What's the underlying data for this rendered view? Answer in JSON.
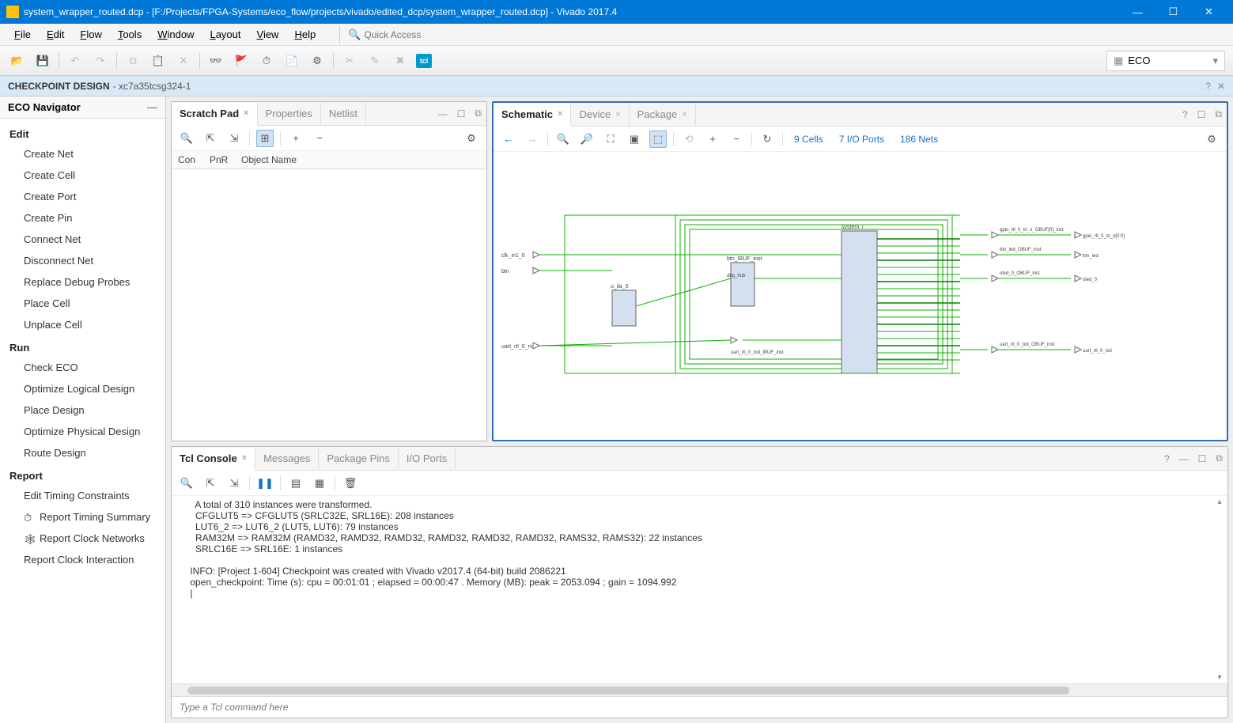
{
  "titlebar": {
    "text": "system_wrapper_routed.dcp - [F:/Projects/FPGA-Systems/eco_flow/projects/vivado/edited_dcp/system_wrapper_routed.dcp] - Vivado 2017.4"
  },
  "menus": [
    "File",
    "Edit",
    "Flow",
    "Tools",
    "Window",
    "Layout",
    "View",
    "Help"
  ],
  "quickaccess_placeholder": "Quick Access",
  "flow_selector": "ECO",
  "designbar": {
    "label": "CHECKPOINT DESIGN",
    "sub": " - xc7a35tcsg324-1"
  },
  "nav": {
    "title": "ECO Navigator",
    "groups": [
      {
        "title": "Edit",
        "items": [
          "Create Net",
          "Create Cell",
          "Create Port",
          "Create Pin",
          "Connect Net",
          "Disconnect Net",
          "Replace Debug Probes",
          "Place Cell",
          "Unplace Cell"
        ]
      },
      {
        "title": "Run",
        "items": [
          "Check ECO",
          "Optimize Logical Design",
          "Place Design",
          "Optimize Physical Design",
          "Route Design"
        ]
      },
      {
        "title": "Report",
        "items": [
          "Edit Timing Constraints",
          "Report Timing Summary",
          "Report Clock Networks",
          "Report Clock Interaction"
        ]
      }
    ]
  },
  "scratch": {
    "tabs": [
      {
        "label": "Scratch Pad",
        "active": true
      },
      {
        "label": "Properties",
        "active": false
      },
      {
        "label": "Netlist",
        "active": false
      }
    ],
    "columns": [
      "Con",
      "PnR",
      "Object Name"
    ]
  },
  "schematic": {
    "tabs": [
      {
        "label": "Schematic",
        "active": true
      },
      {
        "label": "Device",
        "active": false
      },
      {
        "label": "Package",
        "active": false
      }
    ],
    "stats": {
      "cells": "9 Cells",
      "ports": "7 I/O Ports",
      "nets": "186 Nets"
    },
    "port_labels_left": [
      "clk_in1_0",
      "btn",
      "uart_rtl_0_rxd"
    ],
    "port_labels_right": [
      "gpio_rtl_0_tri_o_OBUF[0]_inst",
      "btn_led_OBUF_inst",
      "oled_0_OBUF_inst",
      "uart_rtl_0_txd_OBUF_inst"
    ],
    "port_labels_right_out": [
      "gpio_rtl_0_tri_o[0:0]",
      "btn_led",
      "oled_0",
      "uart_rtl_0_txd"
    ],
    "cell_labels": [
      "u_ila_0",
      "btn_IBUF_inst",
      "dbg_hub",
      "uart_rtl_0_rxd_IBUF_inst",
      "system_i"
    ],
    "colors": {
      "wire": "#0fb000",
      "wire_dark": "#0a7a00",
      "cell_fill": "#d4dff0",
      "cell_stroke": "#666",
      "port": "#555"
    }
  },
  "tcl": {
    "tabs": [
      {
        "label": "Tcl Console",
        "active": true
      },
      {
        "label": "Messages",
        "active": false
      },
      {
        "label": "Package Pins",
        "active": false
      },
      {
        "label": "I/O Ports",
        "active": false
      }
    ],
    "lines": [
      "   A total of 310 instances were transformed.",
      "   CFGLUT5 => CFGLUT5 (SRLC32E, SRL16E): 208 instances",
      "   LUT6_2 => LUT6_2 (LUT5, LUT6): 79 instances",
      "   RAM32M => RAM32M (RAMD32, RAMD32, RAMD32, RAMD32, RAMD32, RAMD32, RAMS32, RAMS32): 22 instances",
      "   SRLC16E => SRL16E: 1 instances",
      "",
      " INFO: [Project 1-604] Checkpoint was created with Vivado v2017.4 (64-bit) build 2086221",
      " open_checkpoint: Time (s): cpu = 00:01:01 ; elapsed = 00:00:47 . Memory (MB): peak = 2053.094 ; gain = 1094.992",
      " |"
    ],
    "input_placeholder": "Type a Tcl command here"
  }
}
